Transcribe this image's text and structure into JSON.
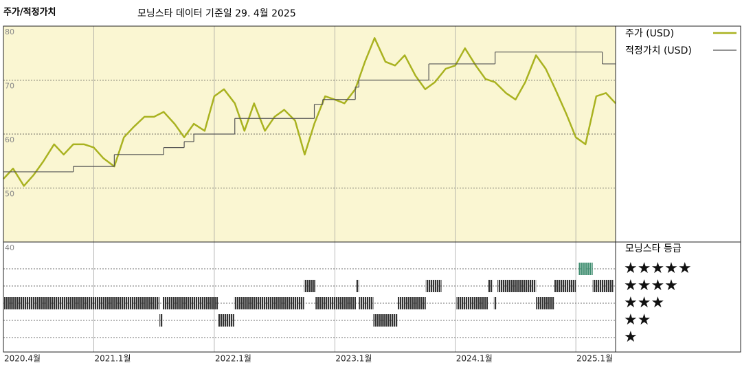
{
  "chart_data": [
    {
      "type": "line",
      "title": "주가/적정가치",
      "subtitle": "모닝스타 데이터 기준일 29. 4월 2025",
      "xlim": [
        2020.25,
        2025.33
      ],
      "xticks": [
        {
          "value": 2020.25,
          "label": "2020.4월"
        },
        {
          "value": 2021.0,
          "label": "2021.1월"
        },
        {
          "value": 2022.0,
          "label": "2022.1월"
        },
        {
          "value": 2023.0,
          "label": "2023.1월"
        },
        {
          "value": 2024.0,
          "label": "2024.1월"
        },
        {
          "value": 2025.0,
          "label": "2025.1월"
        }
      ],
      "ylim": [
        40,
        80
      ],
      "yticks": [
        40,
        50,
        60,
        70,
        80
      ],
      "grid": true,
      "background": "#faf6d2",
      "legend": "right",
      "series": [
        {
          "name": "주가 (USD)",
          "color": "#a9b220",
          "x": [
            2020.25,
            2020.33,
            2020.42,
            2020.5,
            2020.58,
            2020.67,
            2020.75,
            2020.83,
            2020.92,
            2021.0,
            2021.08,
            2021.17,
            2021.25,
            2021.33,
            2021.42,
            2021.5,
            2021.58,
            2021.67,
            2021.75,
            2021.83,
            2021.92,
            2022.0,
            2022.08,
            2022.17,
            2022.25,
            2022.33,
            2022.42,
            2022.5,
            2022.58,
            2022.67,
            2022.75,
            2022.83,
            2022.92,
            2023.0,
            2023.08,
            2023.17,
            2023.25,
            2023.33,
            2023.42,
            2023.5,
            2023.58,
            2023.67,
            2023.75,
            2023.83,
            2023.92,
            2024.0,
            2024.08,
            2024.17,
            2024.25,
            2024.33,
            2024.42,
            2024.5,
            2024.58,
            2024.67,
            2024.75,
            2024.83,
            2024.92,
            2025.0,
            2025.08,
            2025.17,
            2025.25,
            2025.33
          ],
          "values": [
            51.7,
            53.6,
            50.4,
            52.4,
            54.9,
            58.1,
            56.2,
            58.1,
            58.1,
            57.5,
            55.5,
            54.0,
            59.4,
            61.3,
            63.2,
            63.2,
            64.1,
            61.9,
            59.4,
            61.9,
            60.6,
            67.0,
            68.3,
            65.7,
            60.6,
            65.7,
            60.6,
            63.2,
            64.5,
            62.5,
            56.2,
            61.9,
            67.0,
            66.4,
            65.7,
            68.3,
            73.4,
            77.8,
            73.4,
            72.7,
            74.6,
            70.8,
            68.3,
            69.6,
            72.1,
            72.7,
            75.9,
            72.7,
            70.2,
            69.6,
            67.6,
            66.4,
            69.6,
            74.6,
            72.1,
            68.3,
            63.8,
            59.4,
            58.1,
            67.0,
            67.6,
            65.7
          ]
        },
        {
          "name": "적정가치 (USD)",
          "color": "#555555",
          "step": true,
          "x": [
            2020.25,
            2020.83,
            2021.17,
            2021.58,
            2021.75,
            2021.83,
            2022.17,
            2022.83,
            2022.9,
            2023.17,
            2023.2,
            2023.78,
            2024.33,
            2025.22
          ],
          "values": [
            53.0,
            54.0,
            56.2,
            57.5,
            58.6,
            60.0,
            62.9,
            65.5,
            66.4,
            68.7,
            70.0,
            73.0,
            75.2,
            73.0
          ]
        }
      ]
    },
    {
      "type": "rating-bars",
      "title": "모닝스타 등급",
      "levels": [
        {
          "stars": 5,
          "label": "★★★★★",
          "color": "#3d8c6e"
        },
        {
          "stars": 4,
          "label": "★★★★",
          "color": "#333333"
        },
        {
          "stars": 3,
          "label": "★★★",
          "color": "#333333"
        },
        {
          "stars": 2,
          "label": "★★",
          "color": "#333333"
        },
        {
          "stars": 1,
          "label": "★",
          "color": "#333333"
        }
      ],
      "segments": [
        {
          "start": 2020.25,
          "end": 2021.545,
          "stars": 3
        },
        {
          "start": 2021.545,
          "end": 2021.57,
          "stars": 2
        },
        {
          "start": 2021.57,
          "end": 2022.03,
          "stars": 3
        },
        {
          "start": 2022.03,
          "end": 2022.165,
          "stars": 2
        },
        {
          "start": 2022.165,
          "end": 2022.745,
          "stars": 3
        },
        {
          "start": 2022.745,
          "end": 2022.84,
          "stars": 4
        },
        {
          "start": 2022.84,
          "end": 2023.175,
          "stars": 3
        },
        {
          "start": 2023.175,
          "end": 2023.2,
          "stars": 4
        },
        {
          "start": 2023.2,
          "end": 2023.32,
          "stars": 3
        },
        {
          "start": 2023.32,
          "end": 2023.52,
          "stars": 2
        },
        {
          "start": 2023.52,
          "end": 2023.755,
          "stars": 3
        },
        {
          "start": 2023.755,
          "end": 2023.885,
          "stars": 4
        },
        {
          "start": 2024.01,
          "end": 2024.27,
          "stars": 3
        },
        {
          "start": 2024.27,
          "end": 2024.31,
          "stars": 4
        },
        {
          "start": 2024.32,
          "end": 2024.34,
          "stars": 3
        },
        {
          "start": 2024.35,
          "end": 2024.67,
          "stars": 4
        },
        {
          "start": 2024.67,
          "end": 2024.82,
          "stars": 3
        },
        {
          "start": 2024.82,
          "end": 2025.0,
          "stars": 4
        },
        {
          "start": 2025.02,
          "end": 2025.14,
          "stars": 5
        },
        {
          "start": 2025.14,
          "end": 2025.31,
          "stars": 4
        }
      ]
    }
  ]
}
